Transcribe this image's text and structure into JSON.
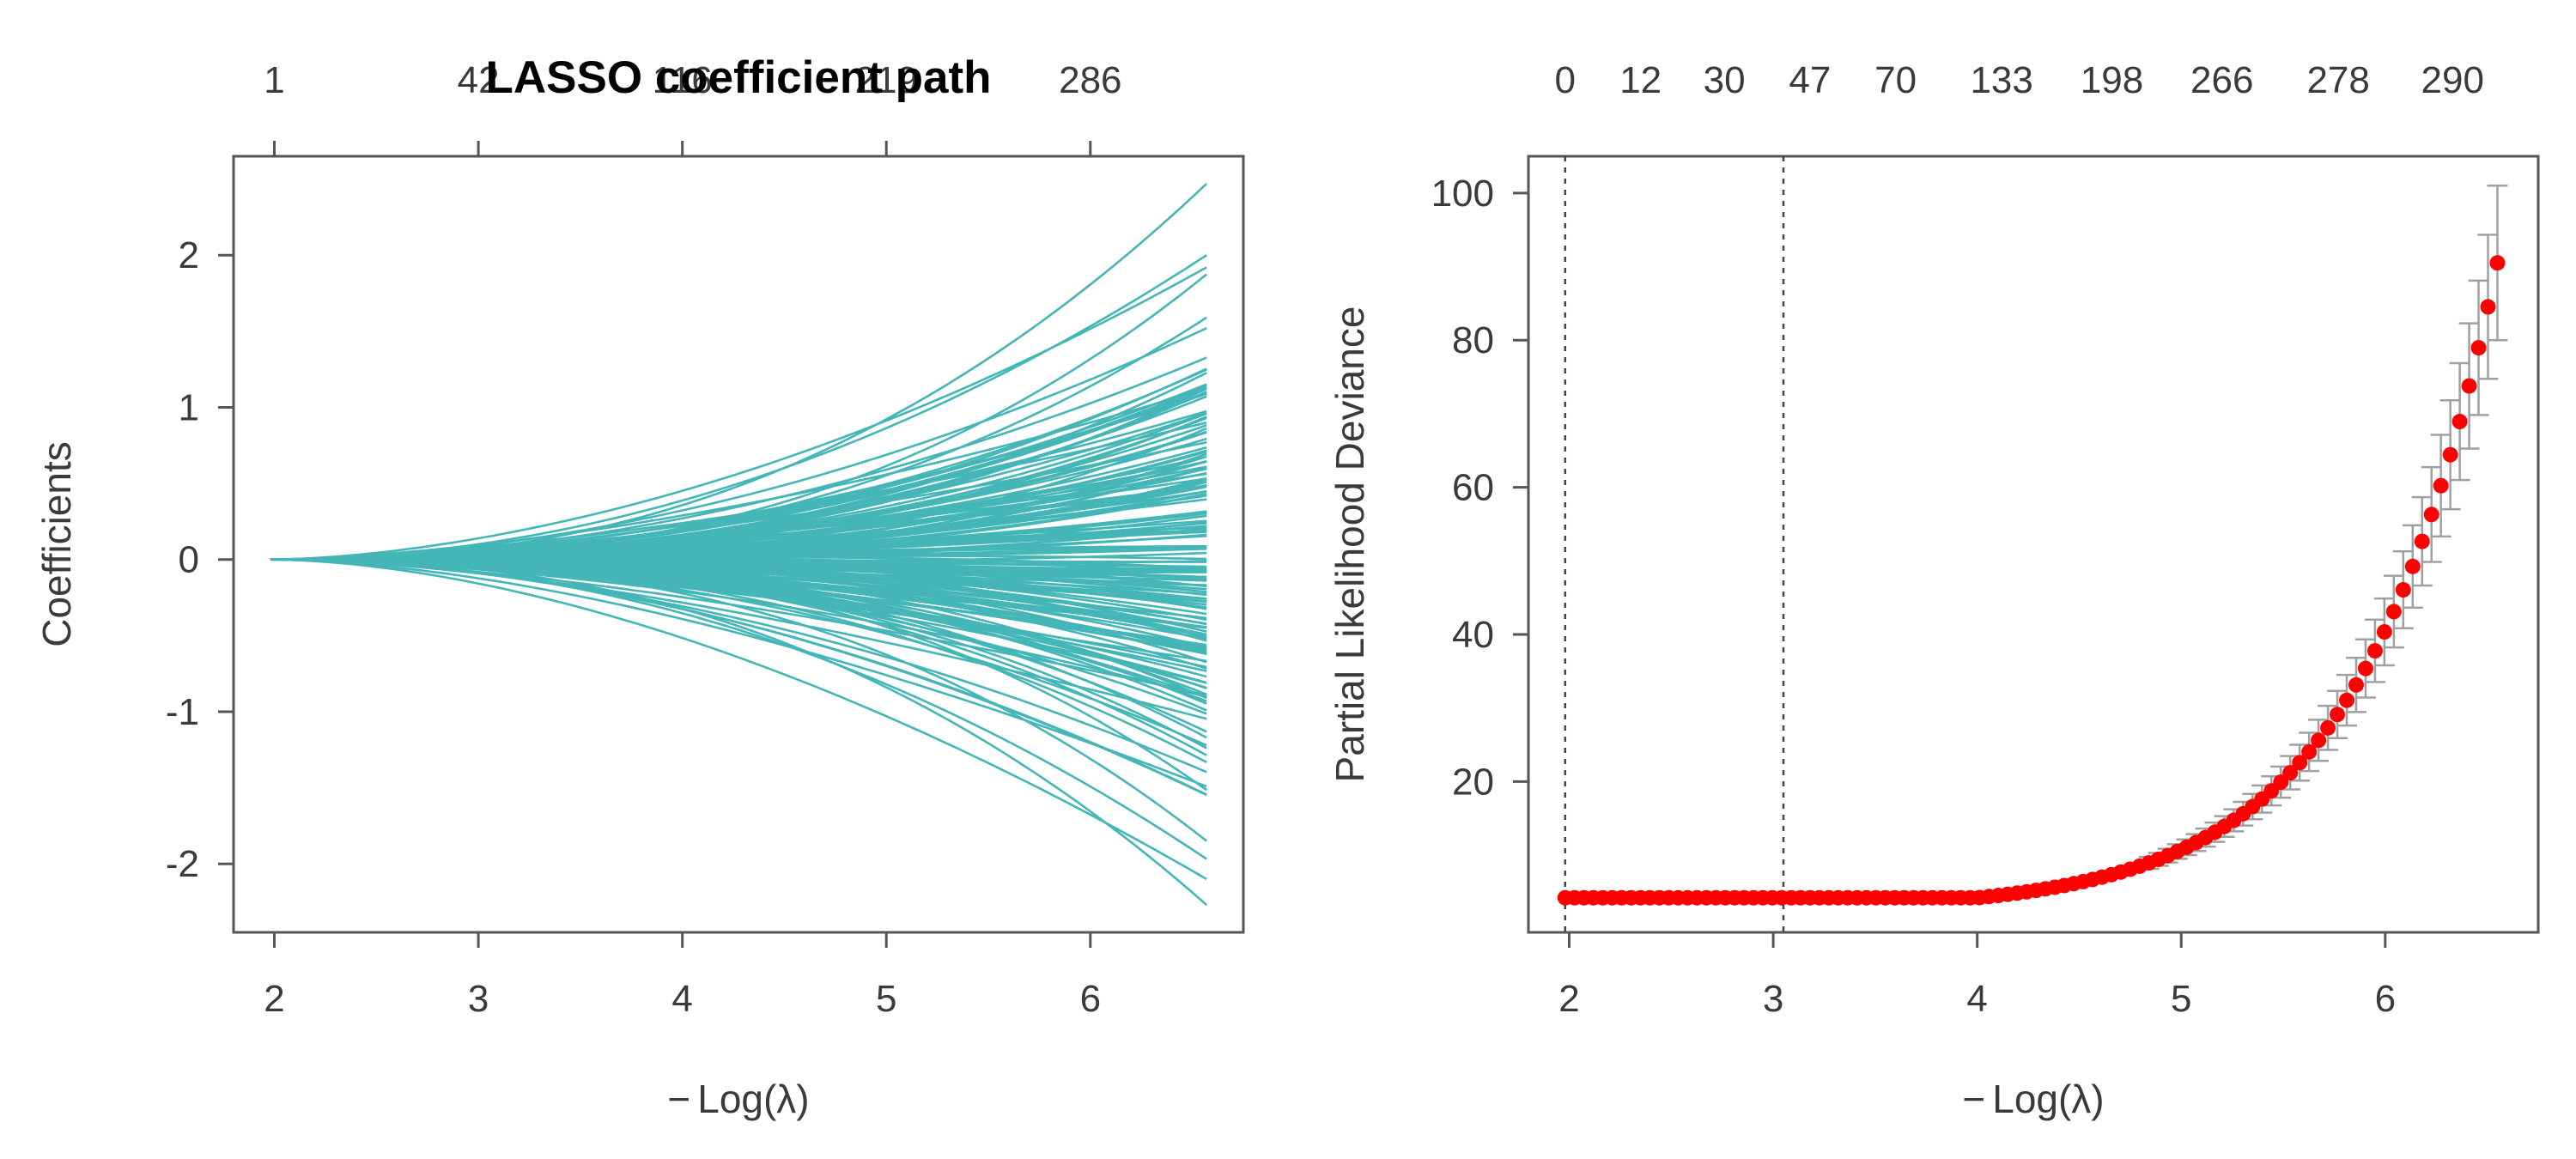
{
  "colors": {
    "path_line": "#45b6b8",
    "cv_point": "#ff0000",
    "errorbar": "#a0a0a0",
    "frame": "#555555",
    "vline": "#444444"
  },
  "chart_data": [
    {
      "type": "line",
      "title": "LASSO coefficient path",
      "xlabel_prefix": "−",
      "xlabel": "Log(λ)",
      "ylabel": "Coefficients",
      "xlim": [
        1.8,
        6.75
      ],
      "ylim": [
        -2.45,
        2.65
      ],
      "x_ticks": [
        "2",
        "3",
        "4",
        "5",
        "6"
      ],
      "y_ticks": [
        "-2",
        "-1",
        "0",
        "1",
        "2"
      ],
      "top_axis": {
        "positions": [
          2,
          3,
          4,
          5,
          6
        ],
        "labels": [
          "1",
          "42",
          "116",
          "219",
          "286"
        ]
      },
      "grid": false,
      "legend": "none",
      "x_range": [
        1.98,
        6.57
      ],
      "n_paths": 180,
      "series_summary": {
        "start_value": 0,
        "max_final": 2.47,
        "min_final": -2.27
      }
    },
    {
      "type": "scatter",
      "title": "",
      "xlabel_prefix": "−",
      "xlabel": "Log(λ)",
      "ylabel": "Partial Likelihood Deviance",
      "xlim": [
        1.8,
        6.75
      ],
      "ylim": [
        -0.5,
        105
      ],
      "x_ticks": [
        "2",
        "3",
        "4",
        "5",
        "6"
      ],
      "y_ticks": [
        "20",
        "40",
        "60",
        "80",
        "100"
      ],
      "top_axis": {
        "positions": [
          1.98,
          2.35,
          2.76,
          3.18,
          3.6,
          4.12,
          4.66,
          5.2,
          5.77,
          6.33
        ],
        "labels": [
          "0",
          "12",
          "30",
          "47",
          "70",
          "133",
          "198",
          "266",
          "278",
          "290"
        ]
      },
      "grid": false,
      "legend": "none",
      "vlines": [
        1.98,
        3.05
      ],
      "points": {
        "x_start": 1.98,
        "x_end": 6.55,
        "count": 100,
        "y_flat": 4.2,
        "y_end": 90.5,
        "se_end": 10.5
      }
    }
  ]
}
